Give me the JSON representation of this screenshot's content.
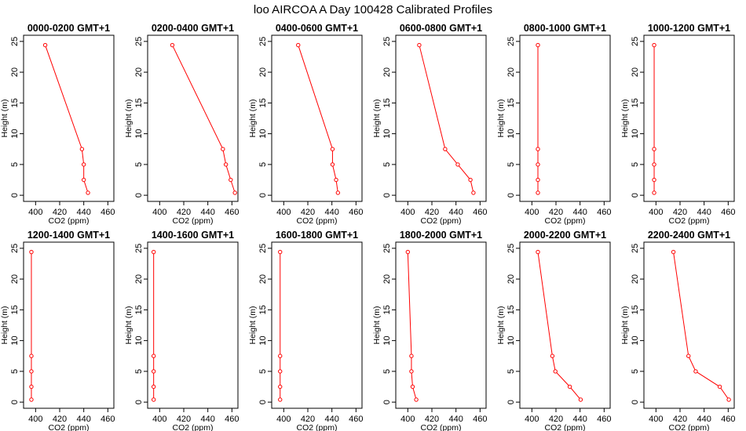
{
  "figure": {
    "title": "loo AIRCOA A  Day 100428  Calibrated Profiles"
  },
  "chart_data": {
    "type": "line",
    "xlabel": "CO2 (ppm)",
    "ylabel": "Height (m)",
    "xlim": [
      390,
      465
    ],
    "ylim": [
      -1,
      26
    ],
    "xticks": [
      400,
      420,
      440,
      460
    ],
    "yticks": [
      0,
      5,
      10,
      15,
      20,
      25
    ],
    "grid": false,
    "line_color": "#ff0000",
    "heights": [
      24.4,
      7.5,
      5.0,
      2.5,
      0.4
    ],
    "panels": [
      {
        "title": "0000-0200 GMT+1",
        "co2": [
          408,
          438.5,
          440,
          440,
          443.5
        ]
      },
      {
        "title": "0200-0400 GMT+1",
        "co2": [
          410.5,
          452.5,
          455,
          459,
          462.5
        ]
      },
      {
        "title": "0400-0600 GMT+1",
        "co2": [
          412,
          440.5,
          440.5,
          443.5,
          445
        ]
      },
      {
        "title": "0600-0800 GMT+1",
        "co2": [
          409.5,
          431,
          441.5,
          452,
          454.5
        ]
      },
      {
        "title": "0800-1000 GMT+1",
        "co2": [
          405,
          405,
          405,
          405,
          405
        ]
      },
      {
        "title": "1000-1200 GMT+1",
        "co2": [
          398.5,
          398.5,
          398.5,
          398.5,
          398.5
        ]
      },
      {
        "title": "1200-1400 GMT+1",
        "co2": [
          396.5,
          396.5,
          396.5,
          396.5,
          396.5
        ]
      },
      {
        "title": "1400-1600 GMT+1",
        "co2": [
          395,
          395,
          395,
          395,
          395
        ]
      },
      {
        "title": "1600-1800 GMT+1",
        "co2": [
          397,
          397,
          397,
          397,
          397
        ]
      },
      {
        "title": "1800-2000 GMT+1",
        "co2": [
          400,
          403,
          403,
          404,
          407
        ]
      },
      {
        "title": "2000-2200 GMT+1",
        "co2": [
          405,
          417,
          419.5,
          431.5,
          440.5
        ]
      },
      {
        "title": "2200-2400 GMT+1",
        "co2": [
          414.5,
          427,
          433,
          453,
          460.5
        ]
      }
    ]
  }
}
